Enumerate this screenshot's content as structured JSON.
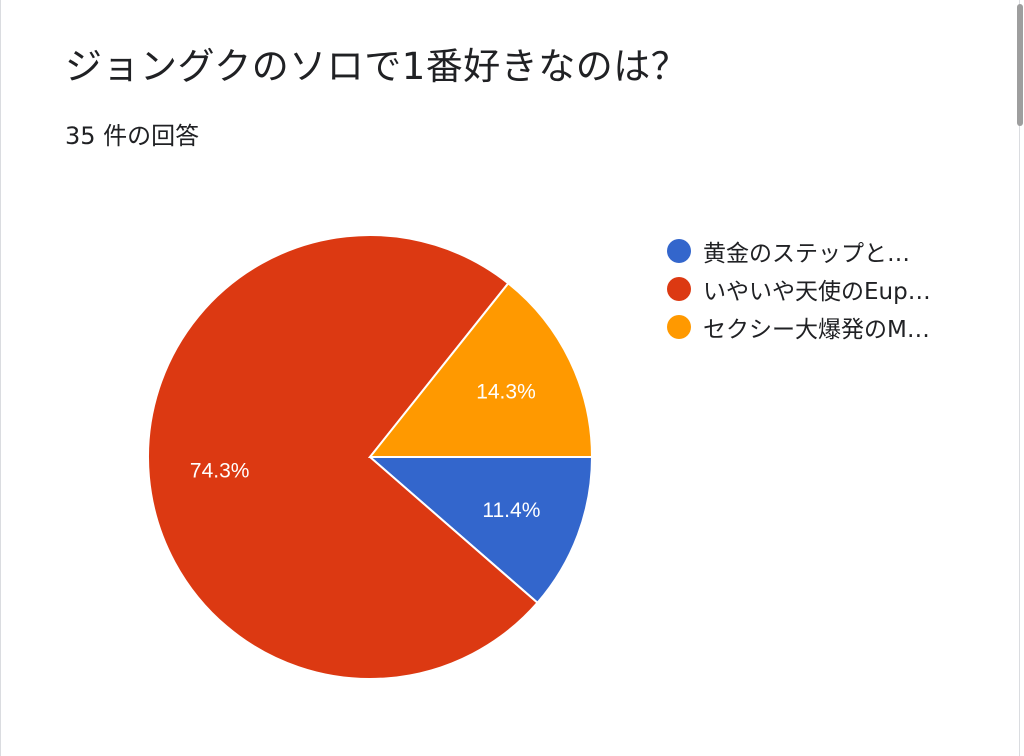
{
  "form": {
    "question_title": "ジョングクのソロで1番好きなのは？",
    "response_count": "35 件の回答"
  },
  "colors": {
    "blue": "#3366cc",
    "red": "#dc3912",
    "orange": "#ff9900"
  },
  "chart_data": {
    "type": "pie",
    "title": "",
    "start_angle_deg": 90,
    "legend_position": "right",
    "slices": [
      {
        "label": "黄金のステップと…",
        "percent_label": "11.4%",
        "value": 11.4,
        "color": "#3366cc"
      },
      {
        "label": "いやいや天使のEup…",
        "percent_label": "74.3%",
        "value": 74.3,
        "color": "#dc3912"
      },
      {
        "label": "セクシー大爆発のM…",
        "percent_label": "14.3%",
        "value": 14.3,
        "color": "#ff9900"
      }
    ]
  }
}
